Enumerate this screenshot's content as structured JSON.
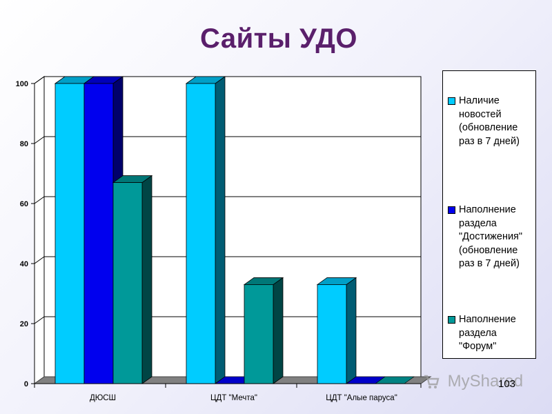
{
  "slide": {
    "title": "Сайты УДО",
    "page_number": "103",
    "watermark": "MyShared"
  },
  "colors": {
    "series": [
      "#00ccff",
      "#0000ee",
      "#009999"
    ],
    "floor": "#808080",
    "background_start": "#ffffff",
    "background_end": "#dcdcf4",
    "title": "#5a1f6b"
  },
  "chart_data": {
    "type": "bar",
    "title": "",
    "xlabel": "",
    "ylabel": "",
    "ylim": [
      0,
      100
    ],
    "yticks": [
      "0",
      "20",
      "40",
      "60",
      "80",
      "100"
    ],
    "grid": true,
    "legend_position": "right",
    "style": "3d-clustered-column",
    "categories": [
      "ДЮСШ",
      "ЦДТ \"Мечта\"",
      "ЦДТ \"Алые паруса\""
    ],
    "series": [
      {
        "name": "Наличие\nновостей\n(обновление\nраз в 7 дней)",
        "values": [
          100,
          100,
          33
        ]
      },
      {
        "name": "Наполнение\nраздела\n\"Достижения\"\n(обновление\nраз в 7 дней)",
        "values": [
          100,
          0,
          0
        ]
      },
      {
        "name": "Наполнение\nраздела\n\"Форум\"",
        "values": [
          67,
          33,
          0
        ]
      }
    ]
  }
}
